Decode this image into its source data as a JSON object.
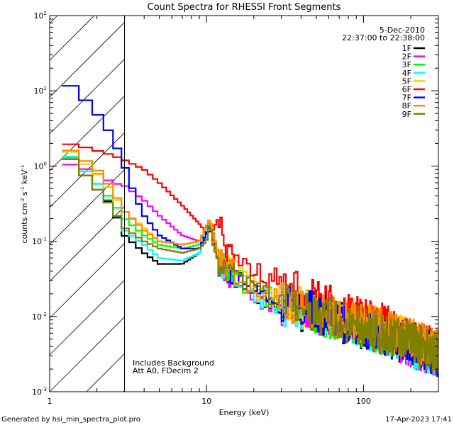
{
  "chart_data": {
    "type": "line",
    "title": "Count Spectra for RHESSI Front Segments",
    "xlabel": "Energy (keV)",
    "ylabel_parts": {
      "base": "counts cm",
      "exp1": "-2",
      "mid1": " s",
      "exp2": "-1",
      "mid2": " keV",
      "exp3": "-1"
    },
    "xscale": "log",
    "yscale": "log",
    "xlim": [
      1,
      300
    ],
    "ylim": [
      0.001,
      100
    ],
    "x_ticks": [
      {
        "v": 1,
        "label": "1"
      },
      {
        "v": 10,
        "label": "10"
      },
      {
        "v": 100,
        "label": "100"
      }
    ],
    "y_ticks": [
      {
        "v": 0.001,
        "base": "10",
        "exp": "-3"
      },
      {
        "v": 0.01,
        "base": "10",
        "exp": "-2"
      },
      {
        "v": 0.1,
        "base": "10",
        "exp": "-1"
      },
      {
        "v": 1,
        "base": "10",
        "exp": "0"
      },
      {
        "v": 10,
        "base": "10",
        "exp": "1"
      },
      {
        "v": 100,
        "base": "10",
        "exp": "2"
      }
    ],
    "hatched_region_max_energy": 3,
    "date": "5-Dec-2010",
    "time_range": "22:37:00 to 22:38:00",
    "annotations": [
      "Includes Background",
      "Att A0, FDecim 2"
    ],
    "series": [
      {
        "name": "1F",
        "color": "#000000",
        "anchors": [
          [
            1.2,
            1.6
          ],
          [
            1.5,
            1.0
          ],
          [
            2.0,
            0.5
          ],
          [
            2.5,
            0.3
          ],
          [
            3.0,
            0.12
          ],
          [
            4.0,
            0.07
          ],
          [
            5.0,
            0.05
          ],
          [
            7.0,
            0.05
          ],
          [
            9.0,
            0.07
          ],
          [
            10.5,
            0.16
          ],
          [
            12.0,
            0.05
          ],
          [
            14.0,
            0.035
          ],
          [
            20.0,
            0.02
          ],
          [
            30.0,
            0.014
          ],
          [
            50.0,
            0.01
          ],
          [
            80.0,
            0.008
          ],
          [
            130.0,
            0.006
          ],
          [
            200.0,
            0.004
          ],
          [
            300.0,
            0.003
          ]
        ]
      },
      {
        "name": "2F",
        "color": "#ff00ff",
        "anchors": [
          [
            1.2,
            1.1
          ],
          [
            1.5,
            1.0
          ],
          [
            2.0,
            0.8
          ],
          [
            2.5,
            0.6
          ],
          [
            3.0,
            0.55
          ],
          [
            4.0,
            0.35
          ],
          [
            5.0,
            0.22
          ],
          [
            7.0,
            0.12
          ],
          [
            9.0,
            0.1
          ],
          [
            10.5,
            0.18
          ],
          [
            12.0,
            0.05
          ],
          [
            14.0,
            0.035
          ],
          [
            20.0,
            0.02
          ],
          [
            30.0,
            0.014
          ],
          [
            50.0,
            0.01
          ],
          [
            80.0,
            0.008
          ],
          [
            130.0,
            0.006
          ],
          [
            200.0,
            0.004
          ],
          [
            300.0,
            0.003
          ]
        ]
      },
      {
        "name": "3F",
        "color": "#00ff00",
        "anchors": [
          [
            1.2,
            1.6
          ],
          [
            1.5,
            1.1
          ],
          [
            2.0,
            0.6
          ],
          [
            2.5,
            0.35
          ],
          [
            3.0,
            0.2
          ],
          [
            4.0,
            0.12
          ],
          [
            5.0,
            0.09
          ],
          [
            7.0,
            0.08
          ],
          [
            9.0,
            0.09
          ],
          [
            10.5,
            0.2
          ],
          [
            12.0,
            0.06
          ],
          [
            14.0,
            0.04
          ],
          [
            20.0,
            0.022
          ],
          [
            30.0,
            0.015
          ],
          [
            50.0,
            0.011
          ],
          [
            80.0,
            0.008
          ],
          [
            130.0,
            0.006
          ],
          [
            200.0,
            0.0045
          ],
          [
            300.0,
            0.0032
          ]
        ]
      },
      {
        "name": "4F",
        "color": "#00ffff",
        "anchors": [
          [
            1.2,
            1.7
          ],
          [
            1.5,
            1.1
          ],
          [
            2.0,
            0.6
          ],
          [
            2.5,
            0.3
          ],
          [
            3.0,
            0.14
          ],
          [
            4.0,
            0.09
          ],
          [
            5.0,
            0.06
          ],
          [
            7.0,
            0.055
          ],
          [
            9.0,
            0.07
          ],
          [
            10.5,
            0.18
          ],
          [
            12.0,
            0.05
          ],
          [
            14.0,
            0.035
          ],
          [
            20.0,
            0.02
          ],
          [
            30.0,
            0.014
          ],
          [
            50.0,
            0.01
          ],
          [
            80.0,
            0.008
          ],
          [
            130.0,
            0.006
          ],
          [
            200.0,
            0.004
          ],
          [
            300.0,
            0.003
          ]
        ]
      },
      {
        "name": "5F",
        "color": "#ffcc00",
        "anchors": [
          [
            1.2,
            1.9
          ],
          [
            1.5,
            1.3
          ],
          [
            2.0,
            0.8
          ],
          [
            2.5,
            0.45
          ],
          [
            3.0,
            0.25
          ],
          [
            4.0,
            0.15
          ],
          [
            5.0,
            0.1
          ],
          [
            7.0,
            0.09
          ],
          [
            9.0,
            0.1
          ],
          [
            10.5,
            0.2
          ],
          [
            12.0,
            0.065
          ],
          [
            14.0,
            0.045
          ],
          [
            20.0,
            0.025
          ],
          [
            30.0,
            0.017
          ],
          [
            50.0,
            0.012
          ],
          [
            80.0,
            0.009
          ],
          [
            130.0,
            0.007
          ],
          [
            200.0,
            0.005
          ],
          [
            300.0,
            0.0035
          ]
        ]
      },
      {
        "name": "6F",
        "color": "#ff0000",
        "anchors": [
          [
            1.2,
            2.0
          ],
          [
            1.5,
            1.9
          ],
          [
            2.0,
            1.6
          ],
          [
            2.5,
            1.4
          ],
          [
            3.0,
            1.2
          ],
          [
            4.0,
            0.9
          ],
          [
            5.0,
            0.6
          ],
          [
            7.0,
            0.3
          ],
          [
            9.0,
            0.17
          ],
          [
            10.0,
            0.13
          ],
          [
            11.0,
            0.14
          ],
          [
            12.0,
            0.22
          ],
          [
            13.0,
            0.09
          ],
          [
            14.0,
            0.065
          ],
          [
            18.0,
            0.05
          ],
          [
            25.0,
            0.035
          ],
          [
            35.0,
            0.024
          ],
          [
            50.0,
            0.016
          ],
          [
            80.0,
            0.011
          ],
          [
            130.0,
            0.008
          ],
          [
            200.0,
            0.005
          ],
          [
            300.0,
            0.0035
          ]
        ]
      },
      {
        "name": "7F",
        "color": "#0000ff",
        "anchors": [
          [
            1.2,
            14.0
          ],
          [
            1.5,
            10.0
          ],
          [
            2.0,
            5.0
          ],
          [
            2.5,
            2.5
          ],
          [
            3.0,
            1.0
          ],
          [
            3.5,
            0.4
          ],
          [
            4.0,
            0.22
          ],
          [
            5.0,
            0.12
          ],
          [
            7.0,
            0.08
          ],
          [
            9.0,
            0.08
          ],
          [
            10.5,
            0.16
          ],
          [
            12.0,
            0.05
          ],
          [
            14.0,
            0.035
          ],
          [
            20.0,
            0.022
          ],
          [
            30.0,
            0.015
          ],
          [
            50.0,
            0.011
          ],
          [
            80.0,
            0.008
          ],
          [
            130.0,
            0.006
          ],
          [
            200.0,
            0.0045
          ],
          [
            300.0,
            0.003
          ]
        ]
      },
      {
        "name": "8F",
        "color": "#ff8800",
        "anchors": [
          [
            1.2,
            1.9
          ],
          [
            1.5,
            1.4
          ],
          [
            2.0,
            0.9
          ],
          [
            2.5,
            0.5
          ],
          [
            3.0,
            0.25
          ],
          [
            4.0,
            0.14
          ],
          [
            5.0,
            0.1
          ],
          [
            7.0,
            0.09
          ],
          [
            9.0,
            0.1
          ],
          [
            10.5,
            0.2
          ],
          [
            12.0,
            0.06
          ],
          [
            14.0,
            0.045
          ],
          [
            20.0,
            0.025
          ],
          [
            30.0,
            0.017
          ],
          [
            50.0,
            0.012
          ],
          [
            80.0,
            0.009
          ],
          [
            130.0,
            0.007
          ],
          [
            200.0,
            0.005
          ],
          [
            300.0,
            0.0035
          ]
        ]
      },
      {
        "name": "9F",
        "color": "#808000",
        "anchors": [
          [
            1.2,
            1.6
          ],
          [
            1.5,
            1.0
          ],
          [
            2.0,
            0.5
          ],
          [
            2.5,
            0.28
          ],
          [
            3.0,
            0.15
          ],
          [
            4.0,
            0.1
          ],
          [
            5.0,
            0.08
          ],
          [
            7.0,
            0.07
          ],
          [
            9.0,
            0.08
          ],
          [
            10.0,
            0.1
          ],
          [
            10.5,
            0.19
          ],
          [
            11.0,
            0.09
          ],
          [
            12.0,
            0.05
          ],
          [
            14.0,
            0.04
          ],
          [
            20.0,
            0.022
          ],
          [
            30.0,
            0.015
          ],
          [
            50.0,
            0.011
          ],
          [
            80.0,
            0.008
          ],
          [
            130.0,
            0.006
          ],
          [
            200.0,
            0.0045
          ],
          [
            300.0,
            0.0032
          ]
        ]
      }
    ]
  },
  "footer": {
    "generated_by": "Generated by hsi_min_spectra_plot.pro",
    "date_stamp": "17-Apr-2023 17:41"
  }
}
